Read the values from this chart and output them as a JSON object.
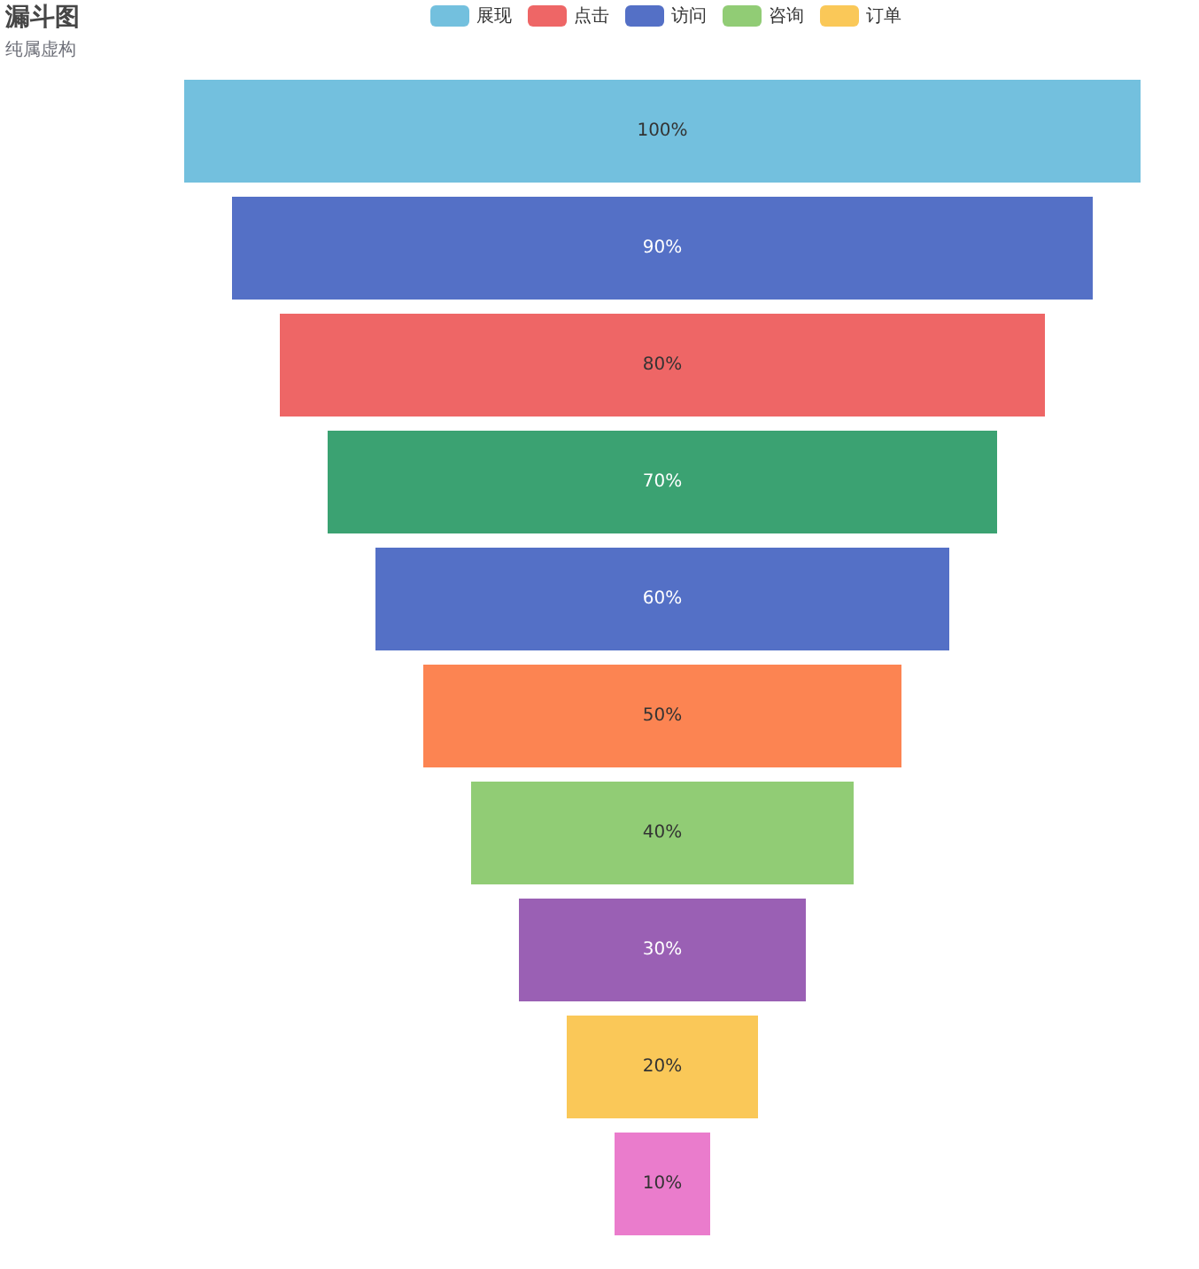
{
  "chart_data": {
    "type": "other",
    "title": "漏斗图",
    "subtitle": "纯属虚构",
    "categories": [
      null,
      null,
      null,
      null,
      null,
      null,
      null,
      null,
      null,
      null
    ],
    "values": [
      100,
      90,
      80,
      70,
      60,
      50,
      40,
      30,
      20,
      10
    ],
    "value_labels": [
      "100%",
      "90%",
      "80%",
      "70%",
      "60%",
      "50%",
      "40%",
      "30%",
      "20%",
      "10%"
    ],
    "colors": [
      "#73c0de",
      "#5470c6",
      "#ee6666",
      "#3ba272",
      "#5470c6",
      "#fc8452",
      "#91cc75",
      "#9a60b4",
      "#fac858",
      "#ea7ccc"
    ],
    "annotations": [
      "展现",
      "点击",
      "访问",
      "咨询",
      "订单"
    ]
  }
}
